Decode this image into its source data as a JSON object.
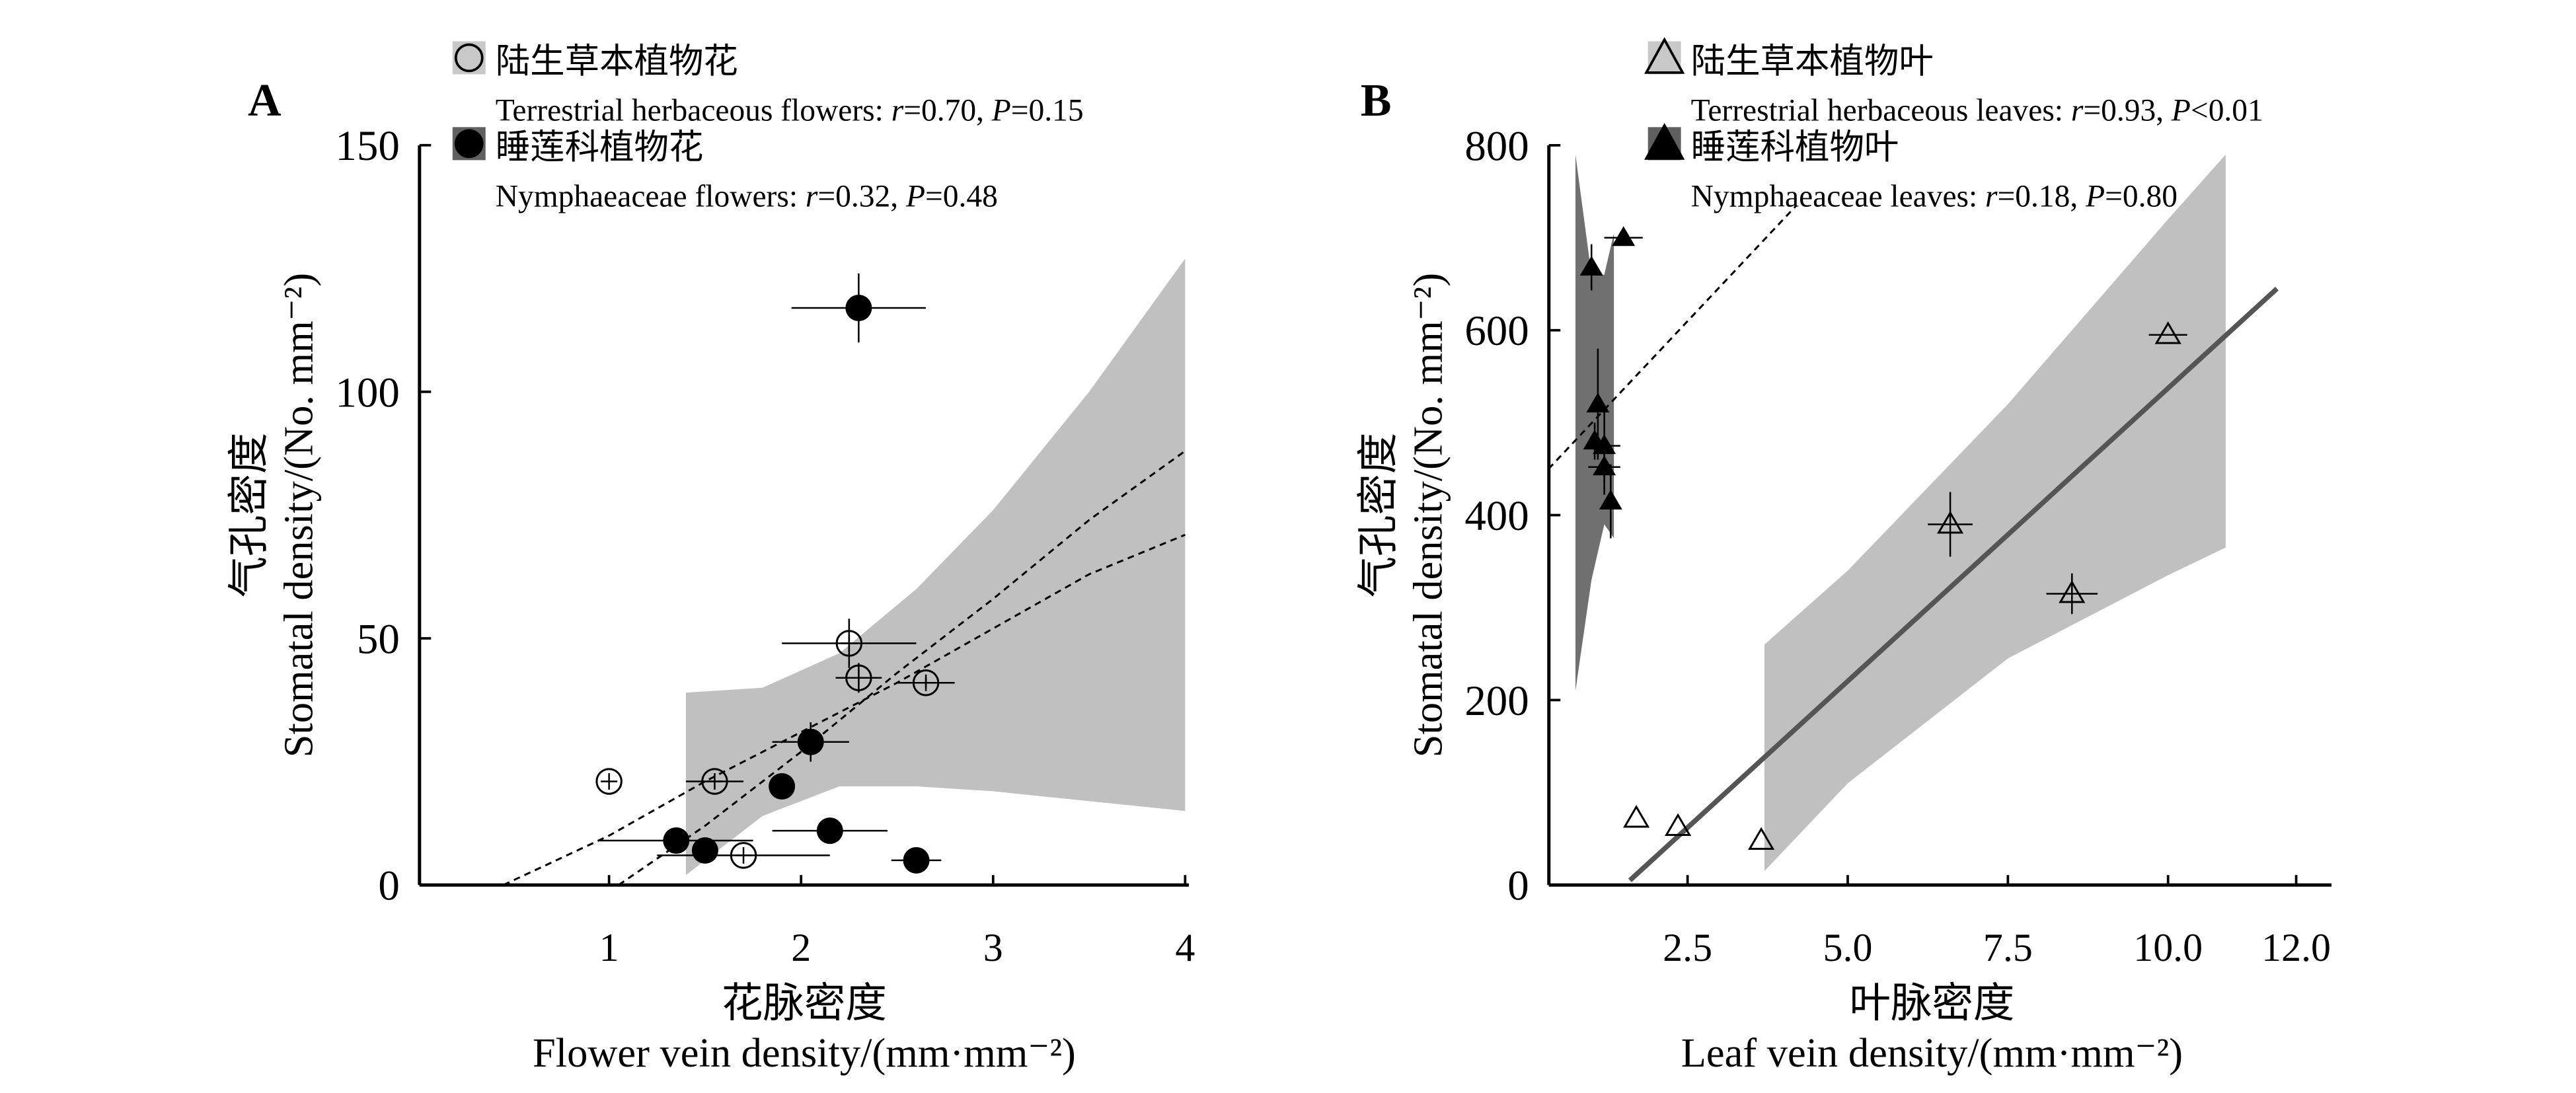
{
  "chart_data": [
    {
      "type": "scatter",
      "panel_label": "A",
      "xlabel_cn": "花脉密度",
      "xlabel": "Flower vein density/(mm·mm⁻²)",
      "ylabel_cn": "气孔密度",
      "ylabel": "Stomatal density/(No. mm⁻²)",
      "xlim": [
        0,
        4
      ],
      "ylim": [
        0,
        150
      ],
      "xticks": [
        "1",
        "2",
        "3",
        "4"
      ],
      "xtick_values": [
        1,
        2,
        3,
        4
      ],
      "yticks": [
        "0",
        "50",
        "100",
        "150"
      ],
      "ytick_values": [
        0,
        50,
        100,
        150
      ],
      "legend_placement": "top",
      "series": [
        {
          "name_cn": "陆生草本植物花",
          "name": "Terrestrial herbaceous flowers: ",
          "stat": "r=0.70, P=0.15",
          "marker": "open-circle",
          "points": [
            [
              1.0,
              21,
              0,
              0
            ],
            [
              1.55,
              21,
              0.15,
              0
            ],
            [
              1.7,
              6,
              0.45,
              0
            ],
            [
              2.25,
              49,
              0.35,
              5
            ],
            [
              2.3,
              42,
              0.12,
              3
            ],
            [
              2.65,
              41,
              0.15,
              1
            ]
          ]
        },
        {
          "name_cn": "睡莲科植物花",
          "name": "Nymphaeaceae flowers: ",
          "stat": "r=0.32, P=0.48",
          "marker": "filled-circle",
          "points": [
            [
              2.3,
              117,
              0.35,
              7
            ],
            [
              2.05,
              29,
              0.2,
              4
            ],
            [
              1.9,
              20,
              0,
              2
            ],
            [
              1.35,
              9,
              0.4,
              0
            ],
            [
              1.5,
              7,
              0,
              0
            ],
            [
              2.15,
              11,
              0.3,
              0
            ],
            [
              2.6,
              5,
              0.13,
              0
            ]
          ]
        }
      ],
      "fit_lines": [
        {
          "style": "dashed",
          "points": [
            [
              0.45,
              0
            ],
            [
              1.0,
              10
            ],
            [
              1.5,
              21
            ],
            [
              2.0,
              31
            ],
            [
              2.5,
              41
            ],
            [
              3.0,
              52
            ],
            [
              3.5,
              63
            ],
            [
              4.0,
              71
            ]
          ]
        },
        {
          "style": "dashed",
          "points": [
            [
              1.05,
              0
            ],
            [
              1.5,
              12
            ],
            [
              2.0,
              27
            ],
            [
              2.5,
              43
            ],
            [
              3.0,
              58
            ],
            [
              3.5,
              74
            ],
            [
              4.0,
              88
            ]
          ]
        }
      ],
      "confidence_bands": [
        {
          "color": "#c0c0c0",
          "x": [
            1.4,
            1.8,
            2.2,
            2.6,
            3.0,
            3.5,
            4.0
          ],
          "upper": [
            39,
            40,
            47,
            60,
            76,
            100,
            127
          ],
          "lower": [
            2,
            14,
            20,
            20,
            19,
            17,
            15
          ]
        }
      ]
    },
    {
      "type": "scatter",
      "panel_label": "B",
      "xlabel_cn": "叶脉密度",
      "xlabel": "Leaf vein density/(mm·mm⁻²)",
      "ylabel_cn": "气孔密度",
      "ylabel": "Stomatal density/(No. mm⁻²)",
      "xlim": [
        0.33,
        12.5
      ],
      "ylim": [
        0,
        800
      ],
      "xticks": [
        "2.5",
        "5.0",
        "7.5",
        "10.0",
        "12.0"
      ],
      "xtick_values": [
        2.5,
        5.0,
        7.5,
        10.0,
        12.0
      ],
      "yticks": [
        "0",
        "200",
        "400",
        "600",
        "800"
      ],
      "ytick_values": [
        0,
        200,
        400,
        600,
        800
      ],
      "legend_placement": "top",
      "series": [
        {
          "name_cn": "陆生草本植物叶",
          "name": "Terrestrial herbaceous leaves: ",
          "stat": "r=0.93, P<0.01",
          "marker": "open-triangle",
          "points": [
            [
              1.7,
              72,
              0,
              0
            ],
            [
              2.35,
              63,
              0,
              0
            ],
            [
              3.65,
              48,
              0,
              0
            ],
            [
              6.6,
              390,
              0.35,
              35
            ],
            [
              8.5,
              315,
              0.4,
              22
            ],
            [
              10.0,
              595,
              0.3,
              0
            ]
          ]
        },
        {
          "name_cn": "睡莲科植物叶",
          "name": "Nymphaeaceae leaves: ",
          "stat": "r=0.18, P=0.80",
          "marker": "filled-triangle",
          "points": [
            [
              1.0,
              668,
              0,
              25
            ],
            [
              1.5,
              700,
              0.3,
              0
            ],
            [
              1.1,
              520,
              0,
              60
            ],
            [
              1.05,
              480,
              0,
              20
            ],
            [
              1.2,
              475,
              0.25,
              40
            ],
            [
              1.2,
              452,
              0.25,
              30
            ],
            [
              1.3,
              415,
              0,
              40
            ]
          ]
        }
      ],
      "fit_lines": [
        {
          "style": "dashed",
          "points": [
            [
              0.33,
              450
            ],
            [
              4.2,
              735
            ]
          ]
        },
        {
          "style": "solid",
          "points": [
            [
              1.6,
              5
            ],
            [
              11.7,
              645
            ]
          ]
        }
      ],
      "confidence_bands": [
        {
          "color": "#c0c0c0",
          "x": [
            3.7,
            5.0,
            7.5,
            10.0,
            10.9
          ],
          "upper": [
            260,
            340,
            520,
            720,
            790
          ],
          "lower": [
            15,
            110,
            245,
            335,
            365
          ]
        },
        {
          "color": "#707070",
          "x": [
            0.75,
            1.0,
            1.2,
            1.35
          ],
          "upper": [
            790,
            660,
            660,
            705
          ],
          "lower": [
            210,
            330,
            390,
            375
          ]
        }
      ]
    }
  ]
}
